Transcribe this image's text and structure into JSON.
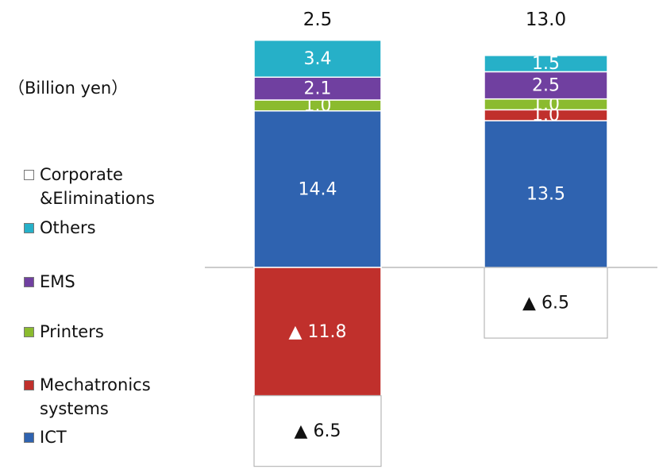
{
  "chart_data": {
    "type": "bar",
    "stacked": true,
    "unit_label": "（Billion yen）",
    "categories": [
      "",
      ""
    ],
    "totals": [
      "2.5",
      "13.0"
    ],
    "series": [
      {
        "name": "ICT",
        "color": "#2f63b0",
        "values": [
          14.4,
          13.5
        ],
        "labels": [
          "14.4",
          "13.5"
        ]
      },
      {
        "name": "Mechatronics\nsystems",
        "color": "#c0302c",
        "values": [
          -11.8,
          1.0
        ],
        "labels": [
          "▲ 11.8",
          "1.0"
        ]
      },
      {
        "name": "Printers",
        "color": "#8bbb2f",
        "values": [
          1.0,
          1.0
        ],
        "labels": [
          "1.0",
          "1.0"
        ]
      },
      {
        "name": "EMS",
        "color": "#7040a0",
        "values": [
          2.1,
          2.5
        ],
        "labels": [
          "2.1",
          "2.5"
        ]
      },
      {
        "name": "Others",
        "color": "#26b0c8",
        "values": [
          3.4,
          1.5
        ],
        "labels": [
          "3.4",
          "1.5"
        ]
      },
      {
        "name": "Corporate\n&Eliminations",
        "color": "#ffffff",
        "values": [
          -6.5,
          -6.5
        ],
        "labels": [
          "▲ 6.5",
          "▲ 6.5"
        ]
      }
    ],
    "ylim": [
      -18.3,
      21.8
    ],
    "grid": false,
    "legend_position": "left"
  }
}
